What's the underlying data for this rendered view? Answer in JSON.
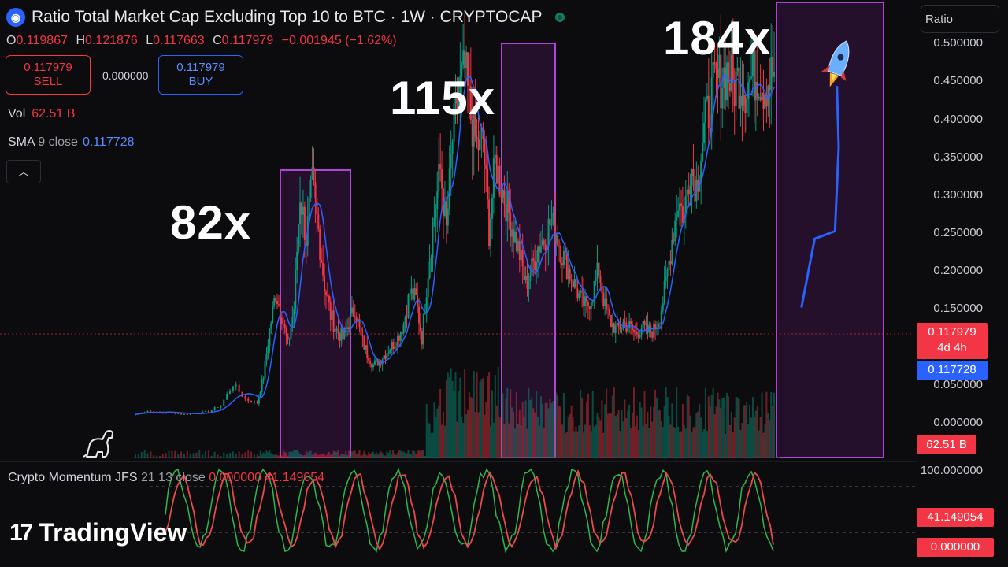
{
  "header": {
    "title": "Ratio Total Market Cap Excluding Top 10 to BTC · 1W · CRYPTOCAP",
    "ohlc": {
      "o_label": "O",
      "o": "0.119867",
      "h_label": "H",
      "h": "0.121876",
      "l_label": "L",
      "l": "0.117663",
      "c_label": "C",
      "c": "0.117979",
      "change": "−0.001945 (−1.62%)"
    }
  },
  "trade": {
    "sell_price": "0.117979",
    "sell_label": "SELL",
    "spread": "0.000000",
    "buy_price": "0.117979",
    "buy_label": "BUY"
  },
  "volume": {
    "label": "Vol",
    "value": "62.51 B"
  },
  "sma": {
    "label": "SMA",
    "params": "9 close",
    "value": "0.117728"
  },
  "annotations": {
    "cycle1": "82x",
    "cycle2": "115x",
    "cycle3": "184x"
  },
  "scale_button": "Ratio",
  "price_axis": {
    "ticks": [
      "0.500000",
      "0.450000",
      "0.400000",
      "0.350000",
      "0.300000",
      "0.250000",
      "0.200000",
      "0.150000",
      "0.050000",
      "0.000000"
    ],
    "last_price": "0.117979",
    "countdown": "4d 4h",
    "sma_price": "0.117728",
    "volume_badge": "62.51 B"
  },
  "indicator": {
    "name": "Crypto Momentum JFS",
    "params": "21 13 close",
    "value1": "0.000000",
    "value2": "41.149054",
    "axis_top": "100.000000",
    "badge_value": "41.149054",
    "badge_zero": "0.000000"
  },
  "branding": {
    "logo_text": "TradingView"
  },
  "colors": {
    "background": "#0c0c0e",
    "down": "#f23645",
    "up": "#089981",
    "sma": "#2962ff",
    "highlight_border": "#b044d8",
    "highlight_fill": "#2a1230",
    "momentum_green": "#2db84d",
    "momentum_red": "#e84a4a"
  },
  "chart_data": {
    "type": "candlestick",
    "x": [
      0,
      4,
      8,
      12,
      16,
      20,
      24,
      28,
      32,
      36,
      40,
      42,
      44,
      46,
      48,
      50,
      52,
      54,
      56,
      58,
      60,
      62,
      64,
      66,
      68,
      70,
      72,
      74,
      76,
      78,
      80,
      82,
      84,
      86,
      88,
      90,
      92,
      94,
      96,
      98,
      100,
      102,
      104,
      106,
      108,
      110,
      112,
      114,
      116,
      118,
      120,
      122,
      124,
      126,
      128,
      130,
      132,
      134,
      136,
      138,
      140,
      142,
      144,
      146,
      148,
      150,
      152,
      154,
      156,
      158,
      160,
      162,
      164,
      166,
      168,
      170,
      172,
      174,
      176,
      178,
      180,
      182,
      184,
      186,
      188,
      190,
      192,
      194,
      196,
      198,
      200,
      202,
      204,
      206,
      208,
      210
    ],
    "series": [
      {
        "name": "Ratio",
        "values": [
          0.01,
          0.015,
          0.012,
          0.013,
          0.01,
          0.012,
          0.014,
          0.022,
          0.05,
          0.03,
          0.025,
          0.06,
          0.12,
          0.17,
          0.14,
          0.1,
          0.15,
          0.3,
          0.24,
          0.31,
          0.25,
          0.18,
          0.14,
          0.12,
          0.11,
          0.13,
          0.15,
          0.11,
          0.09,
          0.075,
          0.08,
          0.09,
          0.1,
          0.11,
          0.13,
          0.17,
          0.16,
          0.11,
          0.2,
          0.27,
          0.33,
          0.25,
          0.37,
          0.43,
          0.46,
          0.4,
          0.36,
          0.37,
          0.25,
          0.34,
          0.31,
          0.28,
          0.25,
          0.22,
          0.18,
          0.2,
          0.23,
          0.24,
          0.26,
          0.25,
          0.22,
          0.2,
          0.18,
          0.16,
          0.15,
          0.17,
          0.2,
          0.15,
          0.13,
          0.12,
          0.13,
          0.125,
          0.115,
          0.125,
          0.118,
          0.12,
          0.14,
          0.18,
          0.24,
          0.29,
          0.27,
          0.34,
          0.31,
          0.37,
          0.41,
          0.44,
          0.45,
          0.46,
          0.44,
          0.45,
          0.44,
          0.45,
          0.46,
          0.44,
          0.45,
          0.46
        ]
      }
    ],
    "projection": [
      [
        0.118,
        0.15
      ],
      [
        0.19,
        0.24
      ],
      [
        0.3,
        0.25
      ],
      [
        0.32,
        0.36
      ],
      [
        0.31,
        0.44
      ]
    ],
    "highlight_zones": [
      "82x",
      "115x",
      "184x"
    ],
    "ylim": [
      0,
      0.52
    ]
  }
}
